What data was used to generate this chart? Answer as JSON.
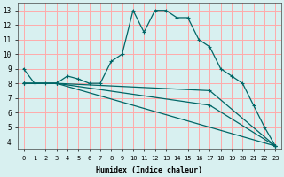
{
  "xlabel": "Humidex (Indice chaleur)",
  "bg_color": "#d8f0f0",
  "grid_color": "#ffaaaa",
  "line_color": "#006666",
  "xlim": [
    -0.5,
    23.5
  ],
  "ylim": [
    3.5,
    13.5
  ],
  "xticks": [
    0,
    1,
    2,
    3,
    4,
    5,
    6,
    7,
    8,
    9,
    10,
    11,
    12,
    13,
    14,
    15,
    16,
    17,
    18,
    19,
    20,
    21,
    22,
    23
  ],
  "yticks": [
    4,
    5,
    6,
    7,
    8,
    9,
    10,
    11,
    12,
    13
  ],
  "curve1_x": [
    0,
    1,
    2,
    3,
    4,
    5,
    6,
    7,
    8,
    9,
    10,
    11,
    12,
    13,
    14,
    15,
    16,
    17,
    18,
    19,
    20,
    21,
    22,
    23
  ],
  "curve1_y": [
    9,
    8,
    8,
    8,
    8.5,
    8.3,
    8,
    8,
    9.5,
    10,
    13,
    11.5,
    13,
    13,
    12.5,
    12.5,
    11,
    10.5,
    9,
    8.5,
    8,
    6.5,
    5,
    3.7
  ],
  "curve2_x": [
    0,
    3,
    23
  ],
  "curve2_y": [
    8,
    8,
    3.7
  ],
  "curve3_x": [
    0,
    3,
    17,
    23
  ],
  "curve3_y": [
    8,
    8,
    7.5,
    3.7
  ],
  "curve4_x": [
    0,
    3,
    17,
    23
  ],
  "curve4_y": [
    8,
    8,
    6.5,
    3.7
  ],
  "xlabel_fontsize": 6,
  "tick_fontsize": 5,
  "lw": 0.9,
  "marker_size": 3.5,
  "marker_ew": 0.8
}
